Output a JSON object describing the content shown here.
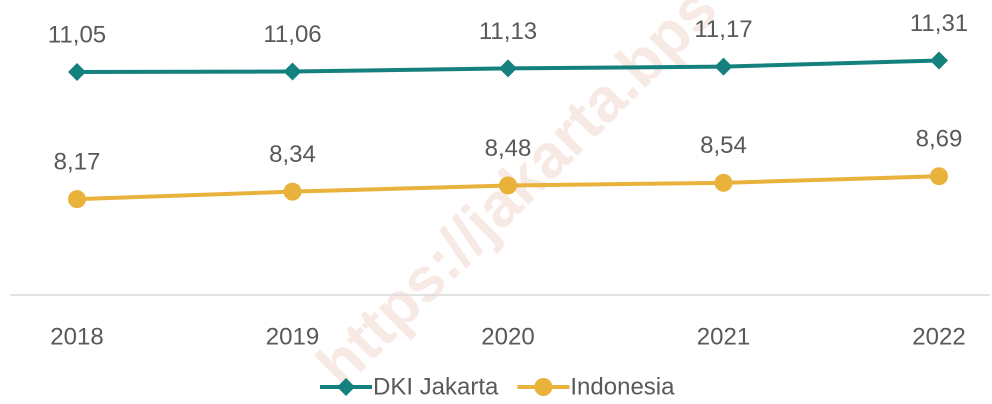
{
  "chart_data": {
    "type": "line",
    "categories": [
      "2018",
      "2019",
      "2020",
      "2021",
      "2022"
    ],
    "series": [
      {
        "name": "DKI Jakarta",
        "color": "#15817f",
        "marker": "diamond",
        "values": [
          11.05,
          11.06,
          11.13,
          11.17,
          11.31
        ],
        "value_labels": [
          "11,05",
          "11,06",
          "11,13",
          "11,17",
          "11,31"
        ]
      },
      {
        "name": "Indonesia",
        "color": "#e9b23a",
        "marker": "circle",
        "values": [
          8.17,
          8.34,
          8.48,
          8.54,
          8.69
        ],
        "value_labels": [
          "8,17",
          "8,34",
          "8,48",
          "8,54",
          "8,69"
        ]
      }
    ],
    "ylim": [
      6,
      12
    ],
    "legend": "bottom",
    "watermark": "https://jakarta.bps"
  }
}
